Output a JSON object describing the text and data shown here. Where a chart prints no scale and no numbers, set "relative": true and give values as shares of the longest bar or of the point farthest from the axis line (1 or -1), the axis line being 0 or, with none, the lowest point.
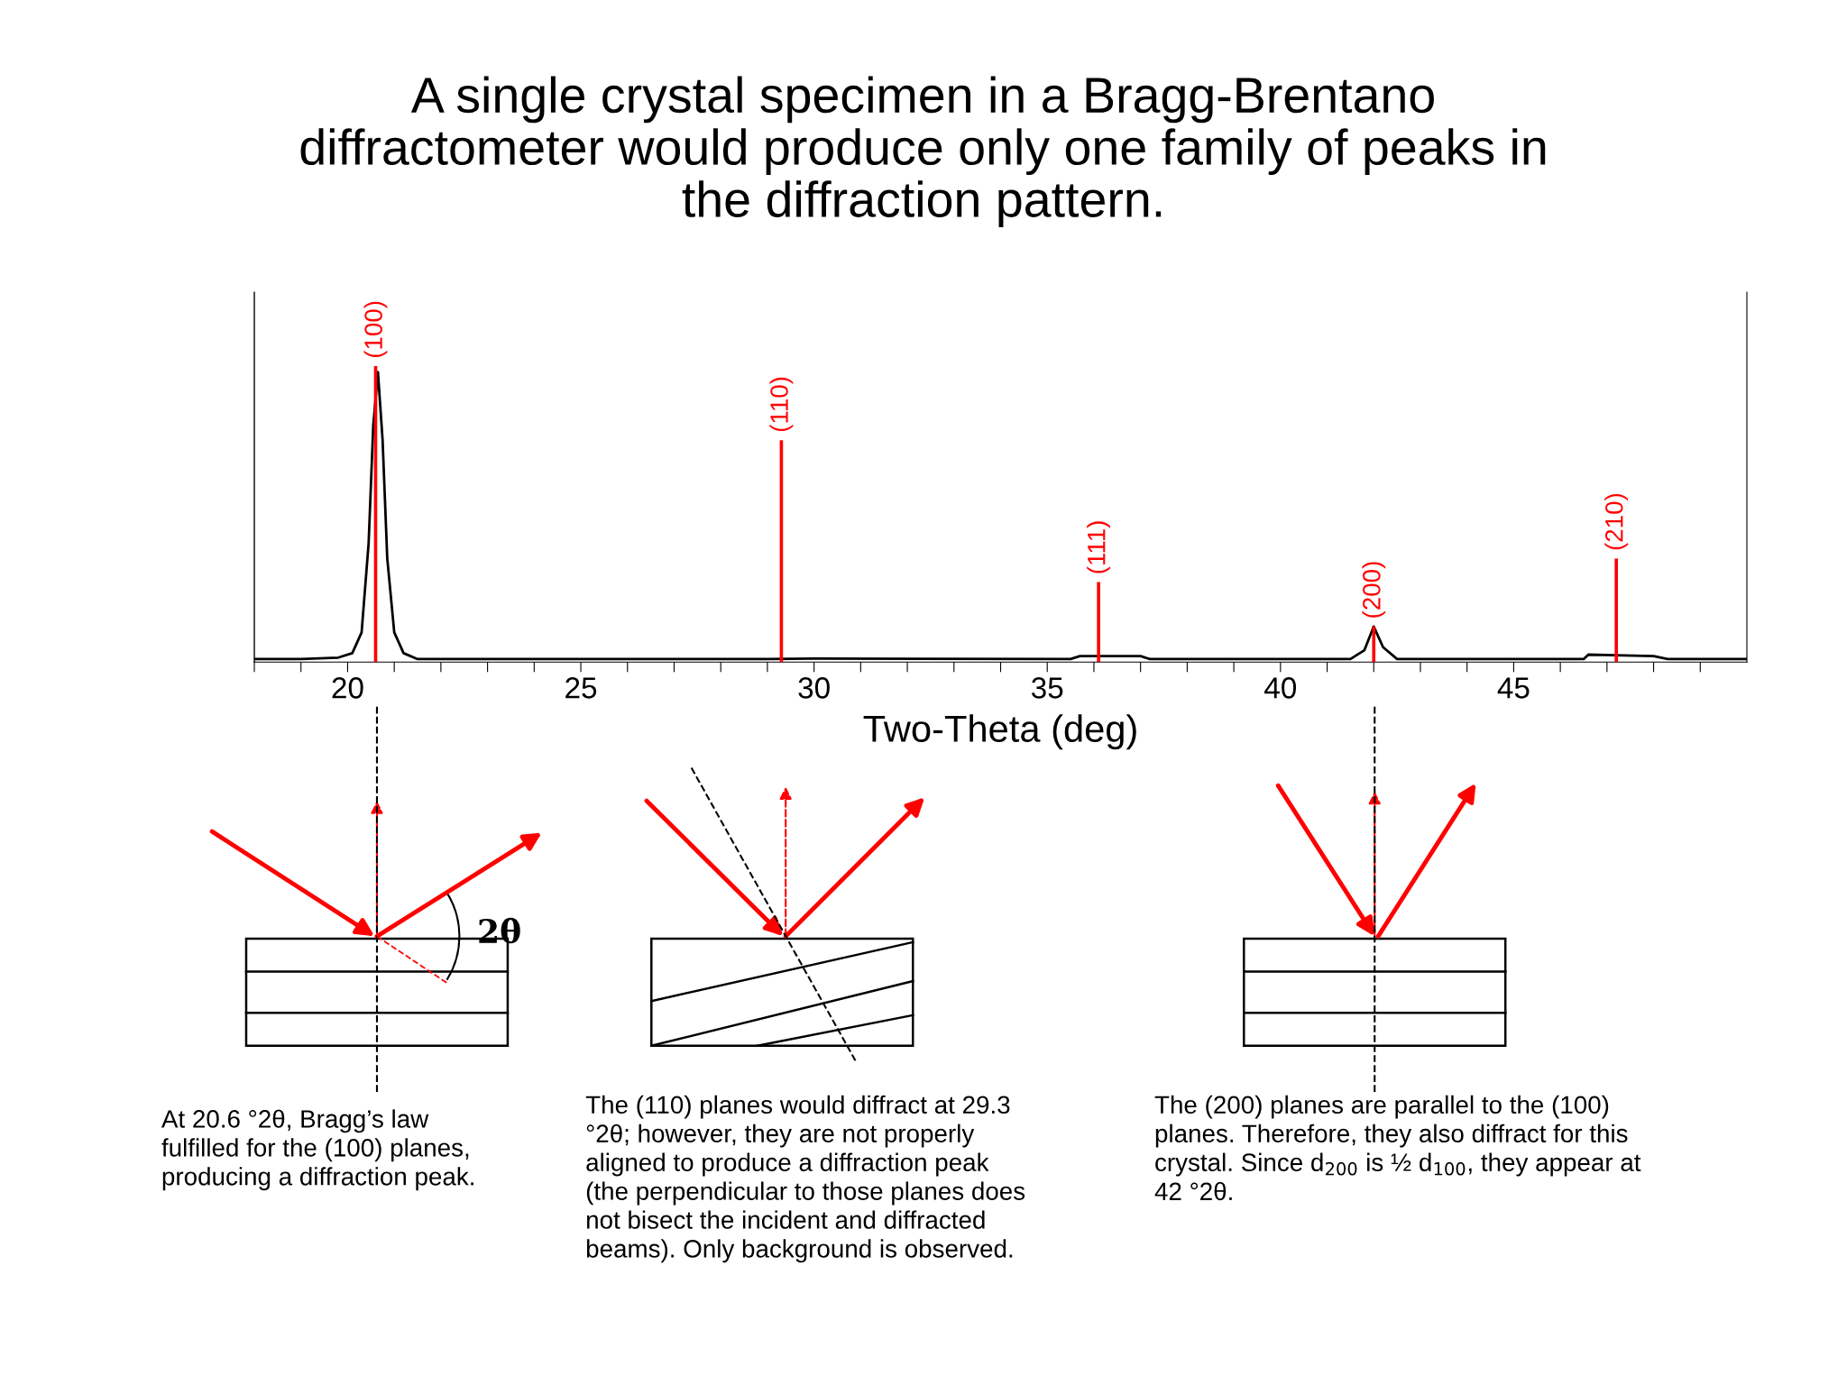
{
  "chart_data": {
    "type": "line",
    "title": "A single crystal specimen in a Bragg-Brentano\ndiffractometer would produce only one family of peaks in\nthe diffraction pattern.",
    "xlabel": "Two-Theta (deg)",
    "xlim": [
      18,
      50
    ],
    "xticks": [
      {
        "value": 18,
        "label": null
      },
      {
        "value": 19,
        "label": null
      },
      20,
      {
        "value": 21,
        "label": null
      },
      {
        "value": 22,
        "label": null
      },
      {
        "value": 23,
        "label": null
      },
      {
        "value": 24,
        "label": null
      },
      25,
      {
        "value": 26,
        "label": null
      },
      {
        "value": 27,
        "label": null
      },
      {
        "value": 28,
        "label": null
      },
      {
        "value": 29,
        "label": null
      },
      30,
      {
        "value": 31,
        "label": null
      },
      {
        "value": 32,
        "label": null
      },
      {
        "value": 33,
        "label": null
      },
      {
        "value": 34,
        "label": null
      },
      35,
      {
        "value": 36,
        "label": null
      },
      {
        "value": 37,
        "label": null
      },
      {
        "value": 38,
        "label": null
      },
      {
        "value": 39,
        "label": null
      },
      40,
      {
        "value": 41,
        "label": null
      },
      {
        "value": 42,
        "label": null
      },
      {
        "value": 43,
        "label": null
      },
      {
        "value": 44,
        "label": null
      },
      45,
      {
        "value": 46,
        "label": null
      },
      {
        "value": 47,
        "label": null
      },
      {
        "value": 48,
        "label": null
      },
      {
        "value": 49,
        "label": null
      }
    ],
    "tick_labels": "x",
    "relative": true,
    "series": [
      {
        "color": "#000000",
        "x": [
          18,
          19,
          19.8,
          20.1,
          20.3,
          20.45,
          20.55,
          20.65,
          20.75,
          20.85,
          21.0,
          21.2,
          21.5,
          25,
          29,
          30,
          35.5,
          35.7,
          37,
          37.2,
          41.5,
          41.8,
          42,
          42.2,
          42.5,
          46.5,
          46.6,
          48,
          48.3,
          50
        ],
        "values": [
          0.01,
          0.01,
          0.015,
          0.03,
          0.1,
          0.4,
          0.8,
          0.98,
          0.75,
          0.35,
          0.1,
          0.03,
          0.01,
          0.01,
          0.01,
          0.012,
          0.01,
          0.02,
          0.02,
          0.01,
          0.01,
          0.04,
          0.12,
          0.05,
          0.01,
          0.01,
          0.025,
          0.02,
          0.01,
          0.01
        ]
      },
      {
        "type": "bar",
        "color": "#ff0000",
        "x": [
          20.6,
          29.3,
          36.1,
          42.0,
          47.2
        ],
        "values": [
          1.0,
          0.75,
          0.27,
          0.12,
          0.35
        ]
      }
    ],
    "annotations": [
      {
        "text": "(100)",
        "x": 20.6,
        "y": 1.0
      },
      {
        "text": "(110)",
        "x": 29.3,
        "y": 0.75
      },
      {
        "text": "(111)",
        "x": 36.1,
        "y": 0.27
      },
      {
        "text": "(200)",
        "x": 42.0,
        "y": 0.12
      },
      {
        "text": "(210)",
        "x": 47.2,
        "y": 0.35
      },
      "2θ",
      "At 20.6 °2θ, Bragg’s law\nfulfilled for the (100) planes,\nproducing a diffraction peak.",
      "The (110) planes would diffract at 29.3\n°2θ; however, they are not properly\naligned to produce a diffraction peak\n(the perpendicular to those planes does\nnot bisect the incident and diffracted\nbeams). Only background is observed.",
      "The (200) planes are parallel to the (100)\nplanes. Therefore, they also diffract for this\ncrystal. Since d$_{200}$ is ½ d$_{100}$, they appear at\n42 °2θ."
    ]
  }
}
